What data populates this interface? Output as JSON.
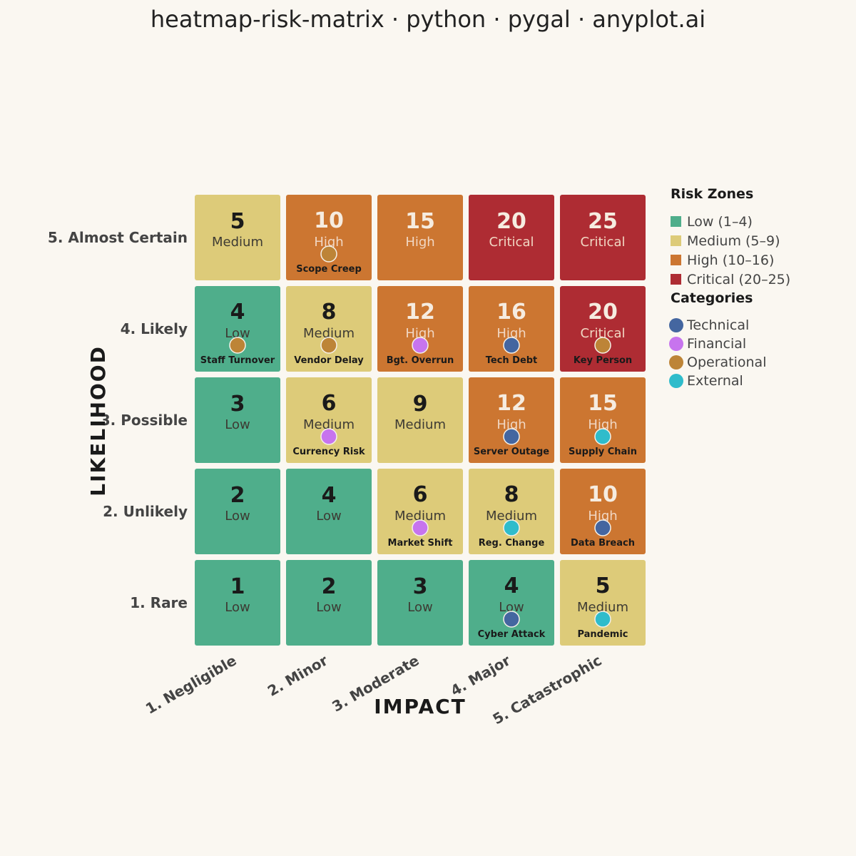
{
  "title": "heatmap-risk-matrix · python · pygal · anyplot.ai",
  "chart_data": {
    "type": "heatmap",
    "title": "heatmap-risk-matrix · python · pygal · anyplot.ai",
    "xlabel": "IMPACT",
    "ylabel": "LIKELIHOOD",
    "x_categories": [
      "1. Negligible",
      "2. Minor",
      "3. Moderate",
      "4. Major",
      "5. Catastrophic"
    ],
    "y_categories": [
      "1. Rare",
      "2. Unlikely",
      "3. Possible",
      "4. Likely",
      "5. Almost Certain"
    ],
    "cells": [
      {
        "impact": 1,
        "likelihood": 5,
        "score": "5",
        "zone": "Medium"
      },
      {
        "impact": 2,
        "likelihood": 5,
        "score": "10",
        "zone": "High"
      },
      {
        "impact": 3,
        "likelihood": 5,
        "score": "15",
        "zone": "High"
      },
      {
        "impact": 4,
        "likelihood": 5,
        "score": "20",
        "zone": "Critical"
      },
      {
        "impact": 5,
        "likelihood": 5,
        "score": "25",
        "zone": "Critical"
      },
      {
        "impact": 1,
        "likelihood": 4,
        "score": "4",
        "zone": "Low"
      },
      {
        "impact": 2,
        "likelihood": 4,
        "score": "8",
        "zone": "Medium"
      },
      {
        "impact": 3,
        "likelihood": 4,
        "score": "12",
        "zone": "High"
      },
      {
        "impact": 4,
        "likelihood": 4,
        "score": "16",
        "zone": "High"
      },
      {
        "impact": 5,
        "likelihood": 4,
        "score": "20",
        "zone": "Critical"
      },
      {
        "impact": 1,
        "likelihood": 3,
        "score": "3",
        "zone": "Low"
      },
      {
        "impact": 2,
        "likelihood": 3,
        "score": "6",
        "zone": "Medium"
      },
      {
        "impact": 3,
        "likelihood": 3,
        "score": "9",
        "zone": "Medium"
      },
      {
        "impact": 4,
        "likelihood": 3,
        "score": "12",
        "zone": "High"
      },
      {
        "impact": 5,
        "likelihood": 3,
        "score": "15",
        "zone": "High"
      },
      {
        "impact": 1,
        "likelihood": 2,
        "score": "2",
        "zone": "Low"
      },
      {
        "impact": 2,
        "likelihood": 2,
        "score": "4",
        "zone": "Low"
      },
      {
        "impact": 3,
        "likelihood": 2,
        "score": "6",
        "zone": "Medium"
      },
      {
        "impact": 4,
        "likelihood": 2,
        "score": "8",
        "zone": "Medium"
      },
      {
        "impact": 5,
        "likelihood": 2,
        "score": "10",
        "zone": "High"
      },
      {
        "impact": 1,
        "likelihood": 1,
        "score": "1",
        "zone": "Low"
      },
      {
        "impact": 2,
        "likelihood": 1,
        "score": "2",
        "zone": "Low"
      },
      {
        "impact": 3,
        "likelihood": 1,
        "score": "3",
        "zone": "Low"
      },
      {
        "impact": 4,
        "likelihood": 1,
        "score": "4",
        "zone": "Low"
      },
      {
        "impact": 5,
        "likelihood": 1,
        "score": "5",
        "zone": "Medium"
      }
    ],
    "risks": [
      {
        "name": "Scope Creep",
        "impact": 2,
        "likelihood": 5,
        "category": "Operational"
      },
      {
        "name": "Staff Turnover",
        "impact": 1,
        "likelihood": 4,
        "category": "Operational"
      },
      {
        "name": "Vendor Delay",
        "impact": 2,
        "likelihood": 4,
        "category": "Operational"
      },
      {
        "name": "Bgt. Overrun",
        "impact": 3,
        "likelihood": 4,
        "category": "Financial"
      },
      {
        "name": "Tech Debt",
        "impact": 4,
        "likelihood": 4,
        "category": "Technical"
      },
      {
        "name": "Key Person",
        "impact": 5,
        "likelihood": 4,
        "category": "Operational"
      },
      {
        "name": "Currency Risk",
        "impact": 2,
        "likelihood": 3,
        "category": "Financial"
      },
      {
        "name": "Server Outage",
        "impact": 4,
        "likelihood": 3,
        "category": "Technical"
      },
      {
        "name": "Supply Chain",
        "impact": 5,
        "likelihood": 3,
        "category": "External"
      },
      {
        "name": "Market Shift",
        "impact": 3,
        "likelihood": 2,
        "category": "Financial"
      },
      {
        "name": "Reg. Change",
        "impact": 4,
        "likelihood": 2,
        "category": "External"
      },
      {
        "name": "Data Breach",
        "impact": 5,
        "likelihood": 2,
        "category": "Technical"
      },
      {
        "name": "Cyber Attack",
        "impact": 4,
        "likelihood": 1,
        "category": "Technical"
      },
      {
        "name": "Pandemic",
        "impact": 5,
        "likelihood": 1,
        "category": "External"
      }
    ],
    "zones": [
      {
        "key": "Low",
        "label": "Low (1–4)",
        "color": "#4fae8b"
      },
      {
        "key": "Medium",
        "label": "Medium (5–9)",
        "color": "#ddcb79"
      },
      {
        "key": "High",
        "label": "High (10–16)",
        "color": "#cc7631"
      },
      {
        "key": "Critical",
        "label": "Critical (20–25)",
        "color": "#ae2c33"
      }
    ],
    "categories": [
      {
        "key": "Technical",
        "label": "Technical",
        "color": "#4466a0"
      },
      {
        "key": "Financial",
        "label": "Financial",
        "color": "#c774ee"
      },
      {
        "key": "Operational",
        "label": "Operational",
        "color": "#bd8437"
      },
      {
        "key": "External",
        "label": "External",
        "color": "#2fbccb"
      }
    ],
    "legend": {
      "zones_title": "Risk Zones",
      "categories_title": "Categories",
      "position": "right"
    }
  }
}
